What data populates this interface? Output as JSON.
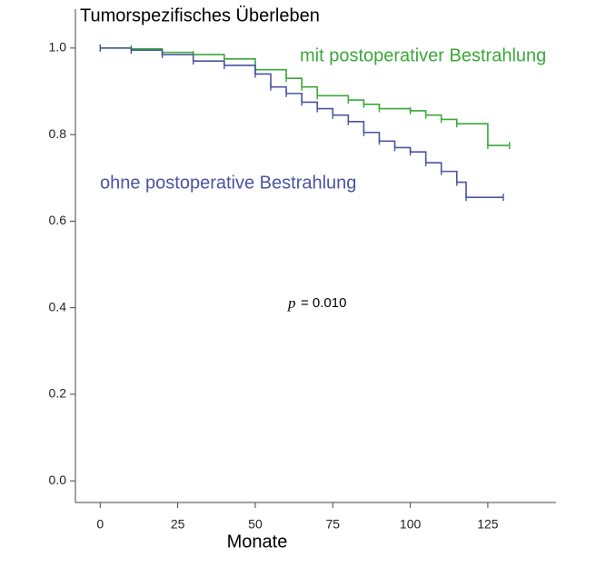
{
  "chart_data": {
    "type": "step",
    "title": "Tumorspezifisches Überleben",
    "x_label": "Monate",
    "annotation_symbol": "p",
    "annotation": "= 0.010",
    "xlim": [
      -8,
      147
    ],
    "ylim": [
      -0.05,
      1.09
    ],
    "xticks": [
      0,
      25,
      50,
      75,
      100,
      125
    ],
    "yticks": [
      {
        "value": 0,
        "label": "0.0"
      },
      0.2,
      0.4,
      0.6,
      0.8,
      {
        "value": 1,
        "label": "1.0"
      }
    ],
    "series": [
      {
        "name": "mit postoperativer Bestrahlung",
        "color": "#3aa83a",
        "x": [
          0,
          10,
          20,
          30,
          40,
          50,
          60,
          65,
          70,
          80,
          85,
          90,
          100,
          105,
          110,
          115,
          125,
          132
        ],
        "values": [
          1.0,
          0.998,
          0.99,
          0.985,
          0.975,
          0.95,
          0.93,
          0.91,
          0.89,
          0.88,
          0.87,
          0.86,
          0.855,
          0.845,
          0.835,
          0.825,
          0.775,
          0.775
        ]
      },
      {
        "name": "ohne postoperative Bestrahlung",
        "color": "#4a55a0",
        "x": [
          0,
          10,
          20,
          30,
          40,
          50,
          55,
          60,
          65,
          70,
          75,
          80,
          85,
          90,
          95,
          100,
          105,
          110,
          115,
          118,
          130
        ],
        "values": [
          1.0,
          0.995,
          0.985,
          0.97,
          0.96,
          0.94,
          0.91,
          0.895,
          0.875,
          0.86,
          0.845,
          0.83,
          0.805,
          0.785,
          0.77,
          0.76,
          0.735,
          0.715,
          0.69,
          0.655,
          0.655
        ]
      }
    ]
  }
}
